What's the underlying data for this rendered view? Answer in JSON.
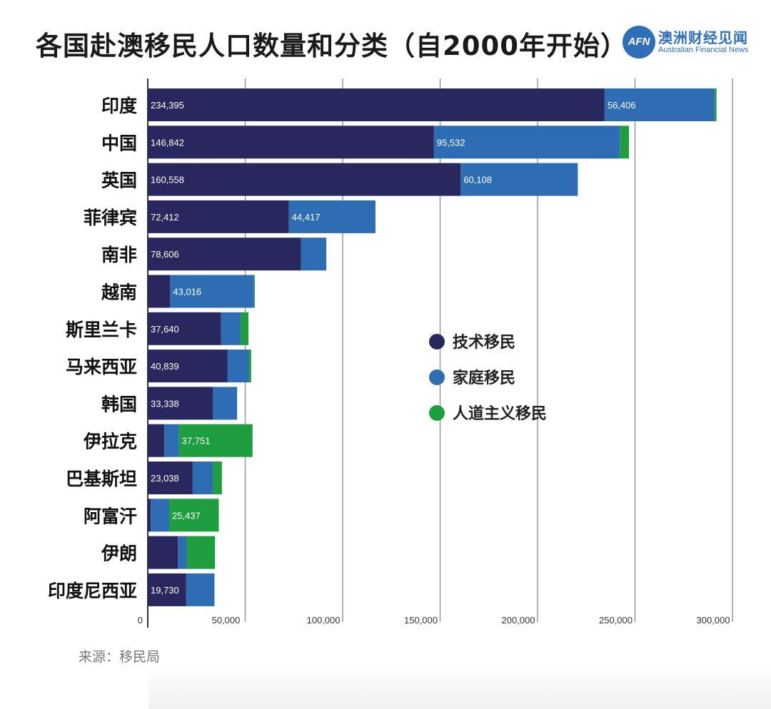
{
  "title": "各国赴澳移民人口数量和分类（自2000年开始）",
  "logo": {
    "mark": "AFN",
    "name_cn": "澳洲财经见闻",
    "name_en": "Australian Financial News"
  },
  "source": "来源：移民局",
  "colors": {
    "skill": "#28285e",
    "family": "#2e6db4",
    "humanitarian": "#1e9e3e",
    "grid": "#8a8a8a",
    "axis": "#333333"
  },
  "chart_data": {
    "type": "bar",
    "orientation": "horizontal",
    "stacked": true,
    "categories": [
      "印度",
      "中国",
      "英国",
      "菲律宾",
      "南非",
      "越南",
      "斯里兰卡",
      "马来西亚",
      "韩国",
      "伊拉克",
      "巴基斯坦",
      "阿富汗",
      "伊朗",
      "印度尼西亚"
    ],
    "series": [
      {
        "name": "技术移民",
        "values": [
          234395,
          146842,
          160558,
          72412,
          78606,
          11500,
          37640,
          40839,
          33338,
          8500,
          23038,
          1500,
          15500,
          19730
        ]
      },
      {
        "name": "家庭移民",
        "values": [
          56406,
          95532,
          60108,
          44417,
          13000,
          43016,
          10000,
          11000,
          12500,
          7500,
          10500,
          9500,
          4500,
          14500
        ]
      },
      {
        "name": "人道主义移民",
        "values": [
          1000,
          4500,
          0,
          0,
          0,
          400,
          4000,
          1200,
          0,
          37751,
          4500,
          25437,
          14500,
          0
        ]
      }
    ],
    "data_labels": [
      [
        "234,395",
        "56,406",
        ""
      ],
      [
        "146,842",
        "95,532",
        ""
      ],
      [
        "160,558",
        "60,108",
        ""
      ],
      [
        "72,412",
        "44,417",
        ""
      ],
      [
        "78,606",
        "",
        ""
      ],
      [
        "",
        "43,016",
        ""
      ],
      [
        "37,640",
        "",
        ""
      ],
      [
        "40,839",
        "",
        ""
      ],
      [
        "33,338",
        "",
        ""
      ],
      [
        "",
        "",
        "37,751"
      ],
      [
        "23,038",
        "",
        ""
      ],
      [
        "",
        "",
        "25,437"
      ],
      [
        "",
        "",
        ""
      ],
      [
        "19,730",
        "",
        ""
      ]
    ],
    "x_ticks": [
      0,
      50000,
      100000,
      150000,
      200000,
      250000,
      300000
    ],
    "x_tick_labels": [
      "0",
      "50,000",
      "100,000",
      "150,000",
      "200,000",
      "250,000",
      "300,000"
    ],
    "xlim": [
      0,
      300000
    ],
    "grid": true,
    "legend_position": "center-right"
  }
}
